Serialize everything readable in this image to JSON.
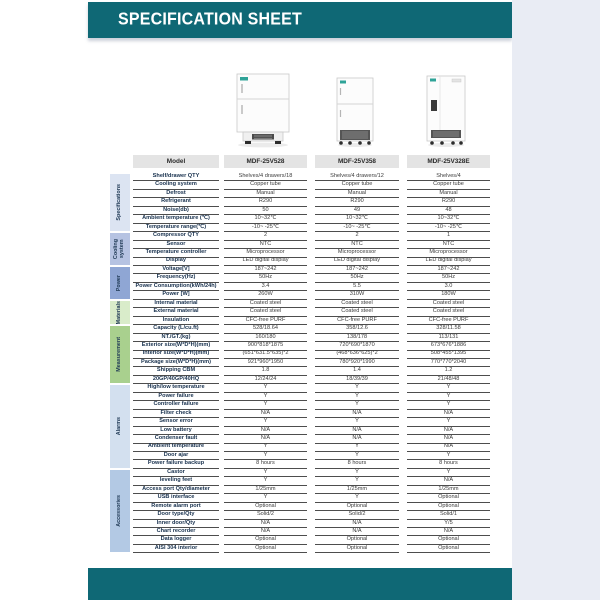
{
  "header": {
    "title": "SPECIFICATION SHEET"
  },
  "colors": {
    "banner_teal": "#0f6875",
    "footer_teal": "#0f6875",
    "page_margin": "#e9ecf4",
    "header_cell_bg": "#e4e4e4",
    "product_logo_teal": "#2fa398"
  },
  "products": [
    {
      "model": "MDF-25V528"
    },
    {
      "model": "MDF-25V358"
    },
    {
      "model": "MDF-25V328E"
    }
  ],
  "table": {
    "model_label": "Model",
    "models": [
      "MDF-25V528",
      "MDF-25V358",
      "MDF-25V328E"
    ],
    "sections": [
      {
        "name": "Specifications",
        "color": "#dce4f2",
        "rows": [
          {
            "label": "Shelf/drawer QTY",
            "values": [
              "Shelves/4  drawers/18",
              "Shelves/4  drawers/12",
              "Shelves/4"
            ]
          },
          {
            "label": "Cooling system",
            "values": [
              "Copper tube",
              "Copper tube",
              "Copper tube"
            ]
          },
          {
            "label": "Defrost",
            "values": [
              "Manual",
              "Manual",
              "Manual"
            ]
          },
          {
            "label": "Refrigerant",
            "values": [
              "R290",
              "R290",
              "R290"
            ]
          },
          {
            "label": "Noise(db)",
            "values": [
              "50",
              "49",
              "48"
            ]
          },
          {
            "label": "Ambient temperature (℃)",
            "values": [
              "10~32℃",
              "10~32℃",
              "10~32℃"
            ]
          },
          {
            "label": "Temperature range(℃)",
            "values": [
              "-10~ -25℃",
              "-10~ -25℃",
              "-10~ -25℃"
            ]
          }
        ]
      },
      {
        "name": "Cooling\nsystem",
        "color": "#b6c3e2",
        "rows": [
          {
            "label": "Compressor QTY",
            "values": [
              "2",
              "2",
              "1"
            ]
          },
          {
            "label": "Sensor",
            "values": [
              "NTC",
              "NTC",
              "NTC"
            ]
          },
          {
            "label": "Temperature controller",
            "values": [
              "Microprocessor",
              "Microprocessor",
              "Microprocessor"
            ]
          },
          {
            "label": "Display",
            "values": [
              "LED digital display",
              "LED digital display",
              "LED digital display"
            ]
          }
        ]
      },
      {
        "name": "Power",
        "color": "#8fa6d4",
        "rows": [
          {
            "label": "Voltage[V]",
            "values": [
              "187~242",
              "187~242",
              "187~242"
            ]
          },
          {
            "label": "Frequency(Hz)",
            "values": [
              "50Hz",
              "50Hz",
              "50Hz"
            ]
          },
          {
            "label": "Power Consumption(kWh/24h)",
            "values": [
              "3.4",
              "5.5",
              "3.0"
            ]
          },
          {
            "label": "Power [W]",
            "values": [
              "260W",
              "310W",
              "180W"
            ]
          }
        ]
      },
      {
        "name": "Materials",
        "color": "#d9ecca",
        "rows": [
          {
            "label": "Internal material",
            "values": [
              "Coated steel",
              "Coated steel",
              "Coated steel"
            ]
          },
          {
            "label": "External material",
            "values": [
              "Coated steel",
              "Coated steel",
              "Coated steel"
            ]
          },
          {
            "label": "Insulation",
            "values": [
              "CFC-free PURF",
              "CFC-free PURF",
              "CFC-free PURF"
            ]
          }
        ]
      },
      {
        "name": "Measurement",
        "color": "#a9d08e",
        "rows": [
          {
            "label": "Capacity (L/cu.ft)",
            "values": [
              "528/18.64",
              "358/12.6",
              "328/11.58"
            ]
          },
          {
            "label": "NT./GT.(kg)",
            "values": [
              "160/180",
              "138/178",
              "113/131"
            ]
          },
          {
            "label": "Exterior size(W*D*H)(mm)",
            "values": [
              "900*818*1875",
              "720*690*1870",
              "673*676*1886"
            ]
          },
          {
            "label": "Interior size(W*D*H)(mm)",
            "values": [
              "(651*631.5*635)*2",
              "(468*636*625)*2",
              "508*455*1395"
            ]
          },
          {
            "label": "Package size(W*D*H)(mm)",
            "values": [
              "921*960*1950",
              "780*920*1990",
              "770*770*2040"
            ]
          },
          {
            "label": "Shipping CBM",
            "values": [
              "1.8",
              "1.4",
              "1.2"
            ]
          },
          {
            "label": "20GP/40GP/40HQ",
            "values": [
              "12/24/24",
              "18/39/39",
              "21/48/48"
            ]
          }
        ]
      },
      {
        "name": "Alarms",
        "color": "#d3e0ef",
        "rows": [
          {
            "label": "High/low temperature",
            "values": [
              "Y",
              "Y",
              "Y"
            ]
          },
          {
            "label": "Power failure",
            "values": [
              "Y",
              "Y",
              "Y"
            ]
          },
          {
            "label": "Controller failure",
            "values": [
              "Y",
              "Y",
              "Y"
            ]
          },
          {
            "label": "Filter check",
            "values": [
              "N/A",
              "N/A",
              "N/A"
            ]
          },
          {
            "label": "Sensor error",
            "values": [
              "Y",
              "Y",
              "Y"
            ]
          },
          {
            "label": "Low battery",
            "values": [
              "N/A",
              "N/A",
              "N/A"
            ]
          },
          {
            "label": "Condenser fault",
            "values": [
              "N/A",
              "N/A",
              "N/A"
            ]
          },
          {
            "label": "Ambient temperature",
            "values": [
              "Y",
              "Y",
              "N/A"
            ]
          },
          {
            "label": "Door ajar",
            "values": [
              "Y",
              "Y",
              "Y"
            ]
          },
          {
            "label": "Power failure backup",
            "values": [
              "8 hours",
              "8 hours",
              "8 hours"
            ]
          }
        ]
      },
      {
        "name": "Accessories",
        "color": "#b3c9e4",
        "rows": [
          {
            "label": "Castor",
            "values": [
              "Y",
              "Y",
              "Y"
            ]
          },
          {
            "label": "leveling feet",
            "values": [
              "Y",
              "Y",
              "N/A"
            ]
          },
          {
            "label": "Access port Qty/diameter",
            "values": [
              "1/25mm",
              "1/25mm",
              "1/25mm"
            ]
          },
          {
            "label": "USB interface",
            "values": [
              "Y",
              "Y",
              "Optional"
            ]
          },
          {
            "label": "Remote alarm port",
            "values": [
              "Optional",
              "Optional",
              "Optional"
            ]
          },
          {
            "label": "Door type/Qty",
            "values": [
              "Solid/2",
              "Solid/2",
              "Solid/1"
            ]
          },
          {
            "label": "Inner door/Qty",
            "values": [
              "N/A",
              "N/A",
              "Y/5"
            ]
          },
          {
            "label": "Chart recorder",
            "values": [
              "N/A",
              "N/A",
              "N/A"
            ]
          },
          {
            "label": "Data logger",
            "values": [
              "Optional",
              "Optional",
              "Optional"
            ]
          },
          {
            "label": "AISI 304 interior",
            "values": [
              "Optional",
              "Optional",
              "Optional"
            ]
          }
        ]
      }
    ]
  }
}
